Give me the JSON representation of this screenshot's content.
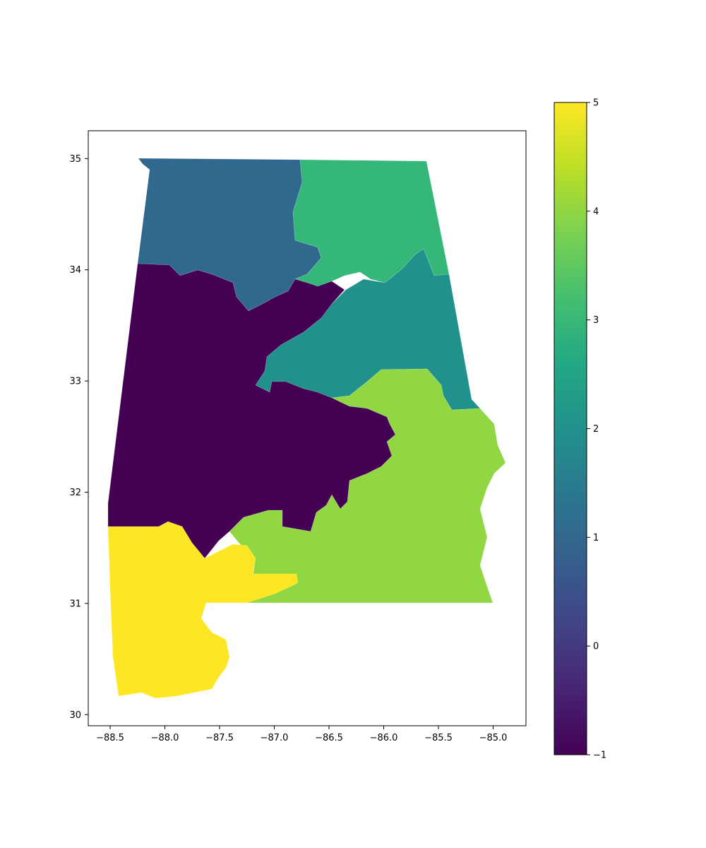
{
  "chart_data": {
    "type": "choropleth map",
    "xlim": [
      -88.7,
      -84.7
    ],
    "ylim": [
      29.9,
      35.25
    ],
    "x_ticks": [
      "−88.5",
      "−88.0",
      "−87.5",
      "−87.0",
      "−86.5",
      "−86.0",
      "−85.5",
      "−85.0"
    ],
    "y_ticks": [
      "30",
      "31",
      "32",
      "33",
      "34",
      "35"
    ],
    "colorbar": {
      "range": [
        -1,
        5
      ],
      "ticks": [
        "−1",
        "0",
        "1",
        "2",
        "3",
        "4",
        "5"
      ],
      "colormap": "viridis"
    },
    "districts": [
      {
        "value": -1,
        "color": "#440154"
      },
      {
        "value": 1,
        "color": "#31688e"
      },
      {
        "value": 2,
        "color": "#21918c"
      },
      {
        "value": 3,
        "color": "#35b779"
      },
      {
        "value": 4,
        "color": "#90d743"
      },
      {
        "value": 5,
        "color": "#fde725"
      }
    ]
  }
}
